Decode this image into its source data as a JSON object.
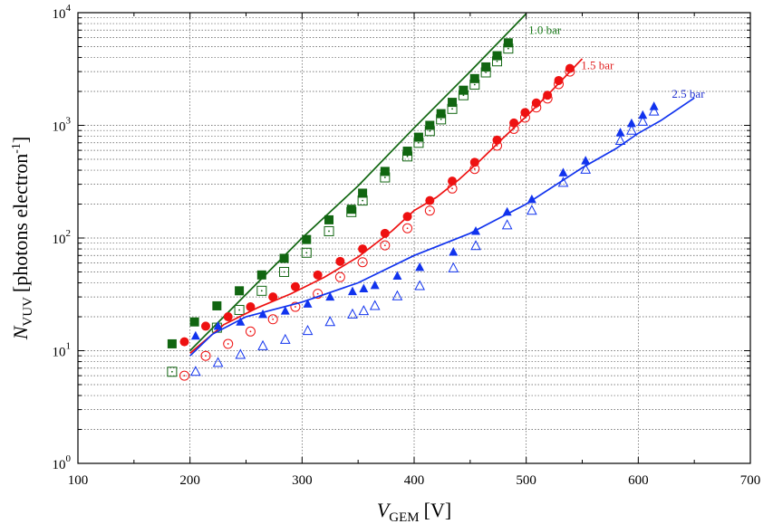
{
  "chart_data": {
    "type": "scatter",
    "xlabel_main": "V",
    "xlabel_sub": "GEM",
    "xlabel_unit": "[V]",
    "ylabel_main": "N",
    "ylabel_sub": "VUV",
    "ylabel_unit": "[photons electron",
    "ylabel_exp": "-1",
    "ylabel_close": "]",
    "xlim": [
      100,
      700
    ],
    "ylim": [
      1,
      10000
    ],
    "yscale": "log",
    "grid": true,
    "x_ticks": [
      {
        "value": 100,
        "label": "100"
      },
      {
        "value": 200,
        "label": "200"
      },
      {
        "value": 300,
        "label": "300"
      },
      {
        "value": 400,
        "label": "400"
      },
      {
        "value": 500,
        "label": "500"
      },
      {
        "value": 600,
        "label": "600"
      },
      {
        "value": 700,
        "label": "700"
      }
    ],
    "y_ticks": [
      {
        "value": 1,
        "base": "10",
        "exp": "0"
      },
      {
        "value": 10,
        "base": "10",
        "exp": "1"
      },
      {
        "value": 100,
        "base": "10",
        "exp": "2"
      },
      {
        "value": 1000,
        "base": "10",
        "exp": "3"
      },
      {
        "value": 10000,
        "base": "10",
        "exp": "4"
      }
    ],
    "annotations": [
      {
        "text": "1.0 bar",
        "x": 502,
        "y": 7000,
        "color": "#1a7a1a"
      },
      {
        "text": "1.5 bar",
        "x": 549,
        "y": 3400,
        "color": "#e02020"
      },
      {
        "text": "2.5 bar",
        "x": 630,
        "y": 1900,
        "color": "#2030d0"
      }
    ],
    "series": [
      {
        "group": "1.0 bar",
        "marker": "filled-square",
        "color": "#116611",
        "points": [
          [
            184,
            11.5
          ],
          [
            204,
            18
          ],
          [
            224,
            25
          ],
          [
            244,
            34
          ],
          [
            264,
            47
          ],
          [
            284,
            66
          ],
          [
            304,
            97
          ],
          [
            324,
            145
          ],
          [
            344,
            180
          ],
          [
            354,
            250
          ],
          [
            374,
            390
          ],
          [
            394,
            590
          ],
          [
            404,
            785
          ],
          [
            414,
            1000
          ],
          [
            424,
            1270
          ],
          [
            434,
            1600
          ],
          [
            444,
            2050
          ],
          [
            454,
            2600
          ],
          [
            464,
            3300
          ],
          [
            474,
            4150
          ],
          [
            484,
            5400
          ]
        ]
      },
      {
        "group": "1.0 bar",
        "marker": "open-square-dot",
        "color": "#116611",
        "points": [
          [
            184,
            6.5
          ],
          [
            224,
            16
          ],
          [
            244,
            23
          ],
          [
            264,
            34
          ],
          [
            284,
            50
          ],
          [
            304,
            74
          ],
          [
            324,
            115
          ],
          [
            344,
            170
          ],
          [
            354,
            215
          ],
          [
            374,
            345
          ],
          [
            394,
            530
          ],
          [
            404,
            700
          ],
          [
            414,
            890
          ],
          [
            424,
            1130
          ],
          [
            434,
            1400
          ],
          [
            444,
            1850
          ],
          [
            454,
            2300
          ],
          [
            464,
            2950
          ],
          [
            474,
            3700
          ],
          [
            484,
            4800
          ]
        ]
      },
      {
        "group": "1.0 bar",
        "marker": "line",
        "color": "#116611",
        "points": [
          [
            200,
            10
          ],
          [
            300,
            100
          ],
          [
            350,
            290
          ],
          [
            400,
            950
          ],
          [
            450,
            3000
          ],
          [
            500,
            9800
          ]
        ]
      },
      {
        "group": "1.5 bar",
        "marker": "filled-circle",
        "color": "#ee1111",
        "points": [
          [
            195,
            12
          ],
          [
            214,
            16.5
          ],
          [
            234,
            20
          ],
          [
            254,
            24.5
          ],
          [
            274,
            30
          ],
          [
            294,
            37
          ],
          [
            314,
            47
          ],
          [
            334,
            62
          ],
          [
            354,
            80
          ],
          [
            374,
            110
          ],
          [
            394,
            155
          ],
          [
            414,
            215
          ],
          [
            434,
            320
          ],
          [
            454,
            470
          ],
          [
            474,
            740
          ],
          [
            489,
            1050
          ],
          [
            499,
            1300
          ],
          [
            509,
            1580
          ],
          [
            519,
            1850
          ],
          [
            529,
            2500
          ],
          [
            539,
            3200
          ]
        ]
      },
      {
        "group": "1.5 bar",
        "marker": "open-circle",
        "color": "#ee1111",
        "points": [
          [
            195,
            6
          ],
          [
            214,
            9
          ],
          [
            234,
            11.5
          ],
          [
            254,
            14.8
          ],
          [
            274,
            19
          ],
          [
            294,
            24.5
          ],
          [
            314,
            32
          ],
          [
            334,
            45
          ],
          [
            354,
            61
          ],
          [
            374,
            86
          ],
          [
            394,
            122
          ],
          [
            414,
            175
          ],
          [
            434,
            275
          ],
          [
            454,
            410
          ],
          [
            474,
            660
          ],
          [
            489,
            930
          ],
          [
            499,
            1170
          ],
          [
            509,
            1440
          ],
          [
            519,
            1730
          ],
          [
            529,
            2320
          ],
          [
            539,
            3000
          ]
        ]
      },
      {
        "group": "1.5 bar",
        "marker": "line",
        "color": "#ee1111",
        "points": [
          [
            200,
            9.5
          ],
          [
            230,
            17
          ],
          [
            260,
            24
          ],
          [
            290,
            32
          ],
          [
            320,
            45
          ],
          [
            350,
            68
          ],
          [
            380,
            115
          ],
          [
            400,
            175
          ],
          [
            420,
            230
          ],
          [
            440,
            330
          ],
          [
            460,
            500
          ],
          [
            480,
            780
          ],
          [
            500,
            1200
          ],
          [
            520,
            1900
          ],
          [
            550,
            3900
          ]
        ]
      },
      {
        "group": "2.5 bar",
        "marker": "filled-triangle",
        "color": "#1133ee",
        "points": [
          [
            205,
            13.5
          ],
          [
            225,
            16.5
          ],
          [
            245,
            18
          ],
          [
            265,
            21
          ],
          [
            285,
            22.5
          ],
          [
            305,
            26
          ],
          [
            325,
            30
          ],
          [
            345,
            33.5
          ],
          [
            355,
            35.5
          ],
          [
            365,
            38
          ],
          [
            385,
            46
          ],
          [
            405,
            55
          ],
          [
            435,
            75
          ],
          [
            455,
            115
          ],
          [
            483,
            170
          ],
          [
            505,
            220
          ],
          [
            533,
            380
          ],
          [
            553,
            485
          ],
          [
            584,
            860
          ],
          [
            594,
            1040
          ],
          [
            604,
            1230
          ],
          [
            614,
            1470
          ]
        ]
      },
      {
        "group": "2.5 bar",
        "marker": "open-triangle",
        "color": "#1133ee",
        "points": [
          [
            205,
            6.5
          ],
          [
            225,
            7.8
          ],
          [
            245,
            9.2
          ],
          [
            265,
            11
          ],
          [
            285,
            12.5
          ],
          [
            305,
            15
          ],
          [
            325,
            18
          ],
          [
            345,
            21
          ],
          [
            355,
            22.5
          ],
          [
            365,
            25
          ],
          [
            385,
            30.5
          ],
          [
            405,
            37.5
          ],
          [
            435,
            54
          ],
          [
            455,
            85
          ],
          [
            483,
            130
          ],
          [
            505,
            175
          ],
          [
            533,
            310
          ],
          [
            553,
            405
          ],
          [
            584,
            730
          ],
          [
            594,
            900
          ],
          [
            604,
            1080
          ],
          [
            614,
            1330
          ]
        ]
      },
      {
        "group": "2.5 bar",
        "marker": "line",
        "color": "#1133ee",
        "points": [
          [
            200,
            9
          ],
          [
            220,
            14
          ],
          [
            250,
            20
          ],
          [
            300,
            27
          ],
          [
            350,
            40
          ],
          [
            400,
            70
          ],
          [
            450,
            110
          ],
          [
            500,
            200
          ],
          [
            550,
            420
          ],
          [
            580,
            620
          ],
          [
            600,
            850
          ],
          [
            620,
            1100
          ],
          [
            650,
            1750
          ]
        ]
      }
    ]
  }
}
